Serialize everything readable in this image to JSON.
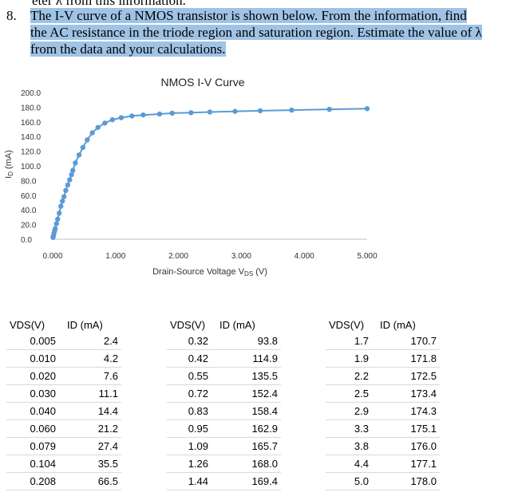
{
  "problem": {
    "cut_line": "eter λ from this information.",
    "number": "8.",
    "text": "The I-V curve of a NMOS transistor is shown below. From the information, find the AC resistance in the triode region and saturation region. Estimate the value of λ from the data and your calculations."
  },
  "chart_data": {
    "type": "scatter",
    "title": "NMOS I-V Curve",
    "xlabel": "Drain-Source Voltage V_DS (V)",
    "ylabel": "I_D (mA)",
    "xlim": [
      0,
      5
    ],
    "ylim": [
      0,
      200
    ],
    "xticks": [
      "0.000",
      "1.000",
      "2.000",
      "3.000",
      "4.000",
      "5.000"
    ],
    "yticks": [
      "0.0",
      "20.0",
      "40.0",
      "60.0",
      "80.0",
      "100.0",
      "120.0",
      "140.0",
      "160.0",
      "180.0",
      "200.0"
    ],
    "grid": false,
    "legend": "none",
    "marker_color": "#5b9bd5",
    "series": [
      {
        "x": [
          0.005,
          0.01,
          0.02,
          0.03,
          0.04,
          0.06,
          0.079,
          0.104,
          0.13,
          0.155,
          0.18,
          0.208,
          0.24,
          0.27,
          0.3,
          0.32,
          0.36,
          0.42,
          0.48,
          0.55,
          0.63,
          0.72,
          0.83,
          0.95,
          1.09,
          1.26,
          1.44,
          1.7,
          1.9,
          2.2,
          2.5,
          2.9,
          3.3,
          3.8,
          4.4,
          5.0
        ],
        "y": [
          2.4,
          4.2,
          7.6,
          11.1,
          14.4,
          21.2,
          27.4,
          35.5,
          45.0,
          52.0,
          58.0,
          66.5,
          74.0,
          81.0,
          88.0,
          93.8,
          104.0,
          114.9,
          125.0,
          135.5,
          145.0,
          152.4,
          158.4,
          162.9,
          165.7,
          168.0,
          169.4,
          170.7,
          171.8,
          172.5,
          173.4,
          174.3,
          175.1,
          176.0,
          177.1,
          178.0
        ]
      }
    ]
  },
  "tables": [
    {
      "headers": [
        "VDS(V)",
        "ID (mA)"
      ],
      "rows": [
        [
          "0.005",
          "2.4"
        ],
        [
          "0.010",
          "4.2"
        ],
        [
          "0.020",
          "7.6"
        ],
        [
          "0.030",
          "11.1"
        ],
        [
          "0.040",
          "14.4"
        ],
        [
          "0.060",
          "21.2"
        ],
        [
          "0.079",
          "27.4"
        ],
        [
          "0.104",
          "35.5"
        ],
        [
          "0.208",
          "66.5"
        ]
      ]
    },
    {
      "headers": [
        "VDS(V)",
        "ID (mA)"
      ],
      "rows": [
        [
          "0.32",
          "93.8"
        ],
        [
          "0.42",
          "114.9"
        ],
        [
          "0.55",
          "135.5"
        ],
        [
          "0.72",
          "152.4"
        ],
        [
          "0.83",
          "158.4"
        ],
        [
          "0.95",
          "162.9"
        ],
        [
          "1.09",
          "165.7"
        ],
        [
          "1.26",
          "168.0"
        ],
        [
          "1.44",
          "169.4"
        ]
      ]
    },
    {
      "headers": [
        "VDS(V)",
        "ID (mA)"
      ],
      "rows": [
        [
          "1.7",
          "170.7"
        ],
        [
          "1.9",
          "171.8"
        ],
        [
          "2.2",
          "172.5"
        ],
        [
          "2.5",
          "173.4"
        ],
        [
          "2.9",
          "174.3"
        ],
        [
          "3.3",
          "175.1"
        ],
        [
          "3.8",
          "176.0"
        ],
        [
          "4.4",
          "177.1"
        ],
        [
          "5.0",
          "178.0"
        ]
      ]
    }
  ]
}
